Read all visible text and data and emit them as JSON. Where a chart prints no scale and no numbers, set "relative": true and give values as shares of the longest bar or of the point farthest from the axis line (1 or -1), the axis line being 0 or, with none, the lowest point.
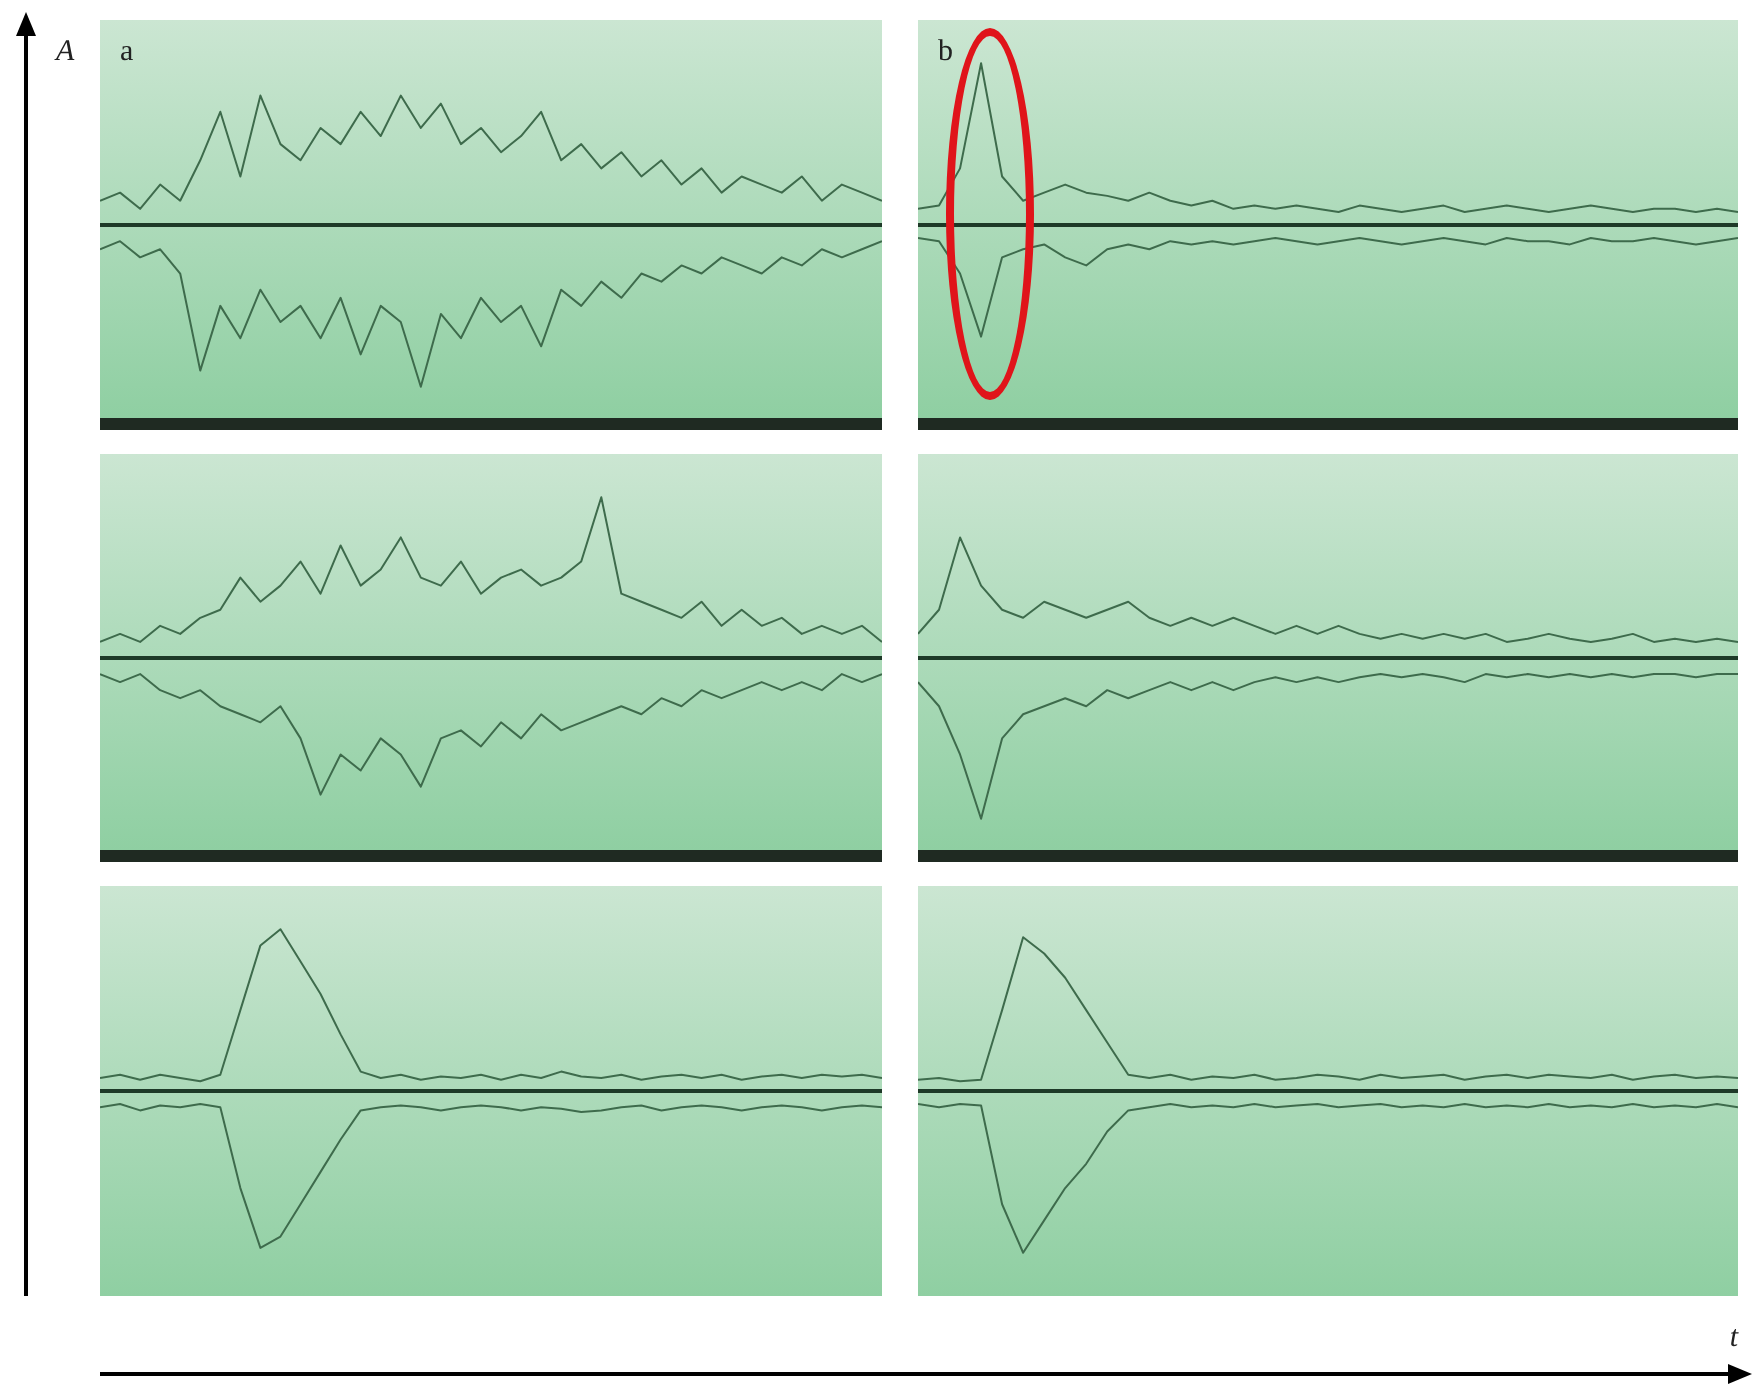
{
  "chart_data": [
    {
      "type": "line",
      "relative": true,
      "ylabel": "A",
      "annotations": [
        "a"
      ],
      "categories": [
        null,
        null,
        null,
        null,
        null,
        null,
        null,
        null,
        null,
        null,
        null,
        null,
        null,
        null,
        null,
        null,
        null,
        null,
        null,
        null,
        null,
        null,
        null,
        null,
        null,
        null,
        null,
        null,
        null,
        null,
        null,
        null,
        null,
        null,
        null,
        null,
        null,
        null,
        null,
        null
      ],
      "series": [
        {
          "color": "#3e6b4c",
          "values": [
            0.15,
            0.2,
            0.1,
            0.25,
            0.15,
            0.4,
            0.7,
            0.3,
            0.8,
            0.5,
            0.4,
            0.6,
            0.5,
            0.7,
            0.55,
            0.8,
            0.6,
            0.75,
            0.5,
            0.6,
            0.45,
            0.55,
            0.7,
            0.4,
            0.5,
            0.35,
            0.45,
            0.3,
            0.4,
            0.25,
            0.35,
            0.2,
            0.3,
            0.25,
            0.2,
            0.3,
            0.15,
            0.25,
            0.2,
            0.15
          ]
        },
        {
          "color": "#3e6b4c",
          "values": [
            -0.15,
            -0.1,
            -0.2,
            -0.15,
            -0.3,
            -0.9,
            -0.5,
            -0.7,
            -0.4,
            -0.6,
            -0.5,
            -0.7,
            -0.45,
            -0.8,
            -0.5,
            -0.6,
            -1,
            -0.55,
            -0.7,
            -0.45,
            -0.6,
            -0.5,
            -0.75,
            -0.4,
            -0.5,
            -0.35,
            -0.45,
            -0.3,
            -0.35,
            -0.25,
            -0.3,
            -0.2,
            -0.25,
            -0.3,
            -0.2,
            -0.25,
            -0.15,
            -0.2,
            -0.15,
            -0.1
          ]
        }
      ]
    },
    {
      "type": "line",
      "relative": true,
      "annotations": [
        "b"
      ],
      "categories": [
        null,
        null,
        null,
        null,
        null,
        null,
        null,
        null,
        null,
        null,
        null,
        null,
        null,
        null,
        null,
        null,
        null,
        null,
        null,
        null,
        null,
        null,
        null,
        null,
        null,
        null,
        null,
        null,
        null,
        null,
        null,
        null,
        null,
        null,
        null,
        null,
        null,
        null,
        null,
        null
      ],
      "series": [
        {
          "color": "#3e6b4c",
          "values": [
            0.1,
            0.12,
            0.35,
            1,
            0.3,
            0.15,
            0.2,
            0.25,
            0.2,
            0.18,
            0.15,
            0.2,
            0.15,
            0.12,
            0.15,
            0.1,
            0.12,
            0.1,
            0.12,
            0.1,
            0.08,
            0.12,
            0.1,
            0.08,
            0.1,
            0.12,
            0.08,
            0.1,
            0.12,
            0.1,
            0.08,
            0.1,
            0.12,
            0.1,
            0.08,
            0.1,
            0.1,
            0.08,
            0.1,
            0.08
          ]
        },
        {
          "color": "#3e6b4c",
          "values": [
            -0.08,
            -0.1,
            -0.3,
            -0.69,
            -0.2,
            -0.15,
            -0.12,
            -0.2,
            -0.25,
            -0.15,
            -0.12,
            -0.15,
            -0.1,
            -0.12,
            -0.1,
            -0.12,
            -0.1,
            -0.08,
            -0.1,
            -0.12,
            -0.1,
            -0.08,
            -0.1,
            -0.12,
            -0.1,
            -0.08,
            -0.1,
            -0.12,
            -0.08,
            -0.1,
            -0.1,
            -0.12,
            -0.08,
            -0.1,
            -0.1,
            -0.08,
            -0.1,
            -0.12,
            -0.1,
            -0.08
          ]
        }
      ]
    },
    {
      "type": "line",
      "relative": true,
      "categories": [
        null,
        null,
        null,
        null,
        null,
        null,
        null,
        null,
        null,
        null,
        null,
        null,
        null,
        null,
        null,
        null,
        null,
        null,
        null,
        null,
        null,
        null,
        null,
        null,
        null,
        null,
        null,
        null,
        null,
        null,
        null,
        null,
        null,
        null,
        null,
        null,
        null,
        null,
        null,
        null
      ],
      "series": [
        {
          "color": "#3e6b4c",
          "values": [
            0.1,
            0.15,
            0.1,
            0.2,
            0.15,
            0.25,
            0.3,
            0.5,
            0.35,
            0.45,
            0.6,
            0.4,
            0.7,
            0.45,
            0.55,
            0.75,
            0.5,
            0.45,
            0.6,
            0.4,
            0.5,
            0.55,
            0.45,
            0.5,
            0.6,
            1,
            0.4,
            0.35,
            0.3,
            0.25,
            0.35,
            0.2,
            0.3,
            0.2,
            0.25,
            0.15,
            0.2,
            0.15,
            0.2,
            0.1
          ]
        },
        {
          "color": "#3e6b4c",
          "values": [
            -0.1,
            -0.15,
            -0.1,
            -0.2,
            -0.25,
            -0.2,
            -0.3,
            -0.35,
            -0.4,
            -0.3,
            -0.5,
            -0.85,
            -0.6,
            -0.7,
            -0.5,
            -0.6,
            -0.8,
            -0.5,
            -0.45,
            -0.55,
            -0.4,
            -0.5,
            -0.35,
            -0.45,
            -0.4,
            -0.35,
            -0.3,
            -0.35,
            -0.25,
            -0.3,
            -0.2,
            -0.25,
            -0.2,
            -0.15,
            -0.2,
            -0.15,
            -0.2,
            -0.1,
            -0.15,
            -0.1
          ]
        }
      ]
    },
    {
      "type": "line",
      "relative": true,
      "categories": [
        null,
        null,
        null,
        null,
        null,
        null,
        null,
        null,
        null,
        null,
        null,
        null,
        null,
        null,
        null,
        null,
        null,
        null,
        null,
        null,
        null,
        null,
        null,
        null,
        null,
        null,
        null,
        null,
        null,
        null,
        null,
        null,
        null,
        null,
        null,
        null,
        null,
        null,
        null,
        null
      ],
      "series": [
        {
          "color": "#3e6b4c",
          "values": [
            0.15,
            0.3,
            0.75,
            0.45,
            0.3,
            0.25,
            0.35,
            0.3,
            0.25,
            0.3,
            0.35,
            0.25,
            0.2,
            0.25,
            0.2,
            0.25,
            0.2,
            0.15,
            0.2,
            0.15,
            0.2,
            0.15,
            0.12,
            0.15,
            0.12,
            0.15,
            0.12,
            0.15,
            0.1,
            0.12,
            0.15,
            0.12,
            0.1,
            0.12,
            0.15,
            0.1,
            0.12,
            0.1,
            0.12,
            0.1
          ]
        },
        {
          "color": "#3e6b4c",
          "values": [
            -0.15,
            -0.3,
            -0.6,
            -1,
            -0.5,
            -0.35,
            -0.3,
            -0.25,
            -0.3,
            -0.2,
            -0.25,
            -0.2,
            -0.15,
            -0.2,
            -0.15,
            -0.2,
            -0.15,
            -0.12,
            -0.15,
            -0.12,
            -0.15,
            -0.12,
            -0.1,
            -0.12,
            -0.1,
            -0.12,
            -0.15,
            -0.1,
            -0.12,
            -0.1,
            -0.12,
            -0.1,
            -0.12,
            -0.1,
            -0.12,
            -0.1,
            -0.1,
            -0.12,
            -0.1,
            -0.1
          ]
        }
      ]
    },
    {
      "type": "line",
      "relative": true,
      "categories": [
        null,
        null,
        null,
        null,
        null,
        null,
        null,
        null,
        null,
        null,
        null,
        null,
        null,
        null,
        null,
        null,
        null,
        null,
        null,
        null,
        null,
        null,
        null,
        null,
        null,
        null,
        null,
        null,
        null,
        null,
        null,
        null,
        null,
        null,
        null,
        null,
        null,
        null,
        null,
        null
      ],
      "series": [
        {
          "color": "#3e6b4c",
          "values": [
            0.08,
            0.1,
            0.07,
            0.1,
            0.08,
            0.06,
            0.1,
            0.5,
            0.9,
            1,
            0.8,
            0.6,
            0.35,
            0.12,
            0.08,
            0.1,
            0.07,
            0.09,
            0.08,
            0.1,
            0.07,
            0.1,
            0.08,
            0.12,
            0.09,
            0.08,
            0.1,
            0.07,
            0.09,
            0.1,
            0.08,
            0.1,
            0.07,
            0.09,
            0.1,
            0.08,
            0.1,
            0.09,
            0.1,
            0.08
          ]
        },
        {
          "color": "#3e6b4c",
          "values": [
            -0.1,
            -0.08,
            -0.12,
            -0.09,
            -0.1,
            -0.08,
            -0.1,
            -0.6,
            -0.97,
            -0.9,
            -0.7,
            -0.5,
            -0.3,
            -0.12,
            -0.1,
            -0.09,
            -0.1,
            -0.12,
            -0.1,
            -0.09,
            -0.1,
            -0.12,
            -0.1,
            -0.11,
            -0.13,
            -0.12,
            -0.1,
            -0.09,
            -0.12,
            -0.1,
            -0.09,
            -0.1,
            -0.12,
            -0.1,
            -0.09,
            -0.1,
            -0.12,
            -0.1,
            -0.09,
            -0.1
          ]
        }
      ]
    },
    {
      "type": "line",
      "relative": true,
      "xlabel": "t",
      "categories": [
        null,
        null,
        null,
        null,
        null,
        null,
        null,
        null,
        null,
        null,
        null,
        null,
        null,
        null,
        null,
        null,
        null,
        null,
        null,
        null,
        null,
        null,
        null,
        null,
        null,
        null,
        null,
        null,
        null,
        null,
        null,
        null,
        null,
        null,
        null,
        null,
        null,
        null,
        null,
        null
      ],
      "series": [
        {
          "color": "#3e6b4c",
          "values": [
            0.07,
            0.08,
            0.06,
            0.07,
            0.5,
            0.95,
            0.85,
            0.7,
            0.5,
            0.3,
            0.1,
            0.08,
            0.1,
            0.07,
            0.09,
            0.08,
            0.1,
            0.07,
            0.08,
            0.1,
            0.09,
            0.07,
            0.1,
            0.08,
            0.09,
            0.1,
            0.07,
            0.09,
            0.1,
            0.08,
            0.1,
            0.09,
            0.08,
            0.1,
            0.07,
            0.09,
            0.1,
            0.08,
            0.09,
            0.08
          ]
        },
        {
          "color": "#3e6b4c",
          "values": [
            -0.08,
            -0.1,
            -0.08,
            -0.09,
            -0.7,
            -1,
            -0.8,
            -0.6,
            -0.45,
            -0.25,
            -0.12,
            -0.1,
            -0.08,
            -0.1,
            -0.09,
            -0.1,
            -0.08,
            -0.1,
            -0.09,
            -0.08,
            -0.1,
            -0.09,
            -0.08,
            -0.1,
            -0.09,
            -0.1,
            -0.08,
            -0.1,
            -0.09,
            -0.1,
            -0.08,
            -0.1,
            -0.09,
            -0.1,
            -0.08,
            -0.1,
            -0.09,
            -0.1,
            -0.08,
            -0.1
          ]
        }
      ]
    }
  ]
}
